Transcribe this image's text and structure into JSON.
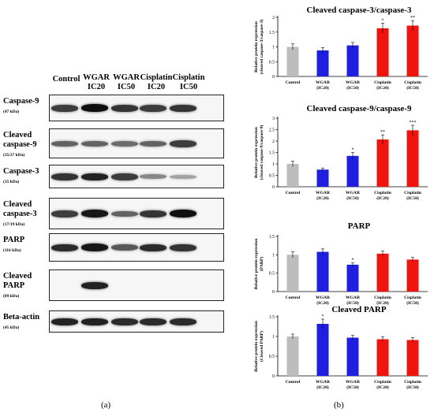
{
  "panel_a": {
    "caption": "(a)",
    "lanes": [
      "Control",
      "WGAR\nIC20",
      "WGAR\nIC50",
      "Cisplatin\nIC20",
      "Cisplatin\nIC50"
    ],
    "blots": [
      {
        "name": "Caspase-9",
        "kda": "(47 kDa)",
        "intensity": [
          0.75,
          1.0,
          0.8,
          0.75,
          0.8
        ]
      },
      {
        "name": "Cleaved\ncaspase-9",
        "kda": "(35/27 kDa)",
        "intensity": [
          0.55,
          0.55,
          0.5,
          0.55,
          0.75
        ]
      },
      {
        "name": "Caspase-3",
        "kda": "(35 kDa)",
        "intensity": [
          0.8,
          0.9,
          0.75,
          0.35,
          0.2
        ]
      },
      {
        "name": "Cleaved\ncaspase-3",
        "kda": "(17/19 kDa)",
        "intensity": [
          0.75,
          0.95,
          0.55,
          0.8,
          1.0
        ]
      },
      {
        "name": "PARP",
        "kda": "(116 kDa)",
        "intensity": [
          0.85,
          0.95,
          0.6,
          0.85,
          0.8
        ]
      },
      {
        "name": "Cleaved\nPARP",
        "kda": "(89 kDa)",
        "intensity": [
          0.0,
          0.9,
          0.0,
          0.0,
          0.0
        ]
      },
      {
        "name": "Beta-actin",
        "kda": "(45 kDa)",
        "intensity": [
          0.9,
          0.9,
          0.85,
          0.85,
          0.85
        ]
      }
    ]
  },
  "panel_b": {
    "caption": "(b)",
    "colors": {
      "control": "#bdbdbd",
      "wgar": "#1f1fe0",
      "cisplatin": "#f0140f"
    }
  },
  "chart_data": [
    {
      "type": "bar",
      "title": "Cleaved caspase-3/caspase-3",
      "ylabel": "Relative protein expression\n(cleaved caspase-3/caspase-3)",
      "categories": [
        "Control",
        "WGAR\n(IC20)",
        "WGAR\n(IC50)",
        "Cisplatin\n(IC20)",
        "Cisplatin\n(IC50)"
      ],
      "values": [
        1.0,
        0.88,
        1.05,
        1.63,
        1.72
      ],
      "errors": [
        0.1,
        0.1,
        0.1,
        0.17,
        0.17
      ],
      "significance": [
        "",
        "",
        "",
        "*",
        "**"
      ],
      "ylim": [
        0,
        2
      ],
      "yticks": [
        0,
        0.5,
        1,
        1.5,
        2
      ]
    },
    {
      "type": "bar",
      "title": "Cleaved caspase-9/caspase-9",
      "ylabel": "Relative protein expression\n(cleaved caspase-9/caspase-9)",
      "categories": [
        "Control",
        "WGAR\n(IC20)",
        "WGAR\n(IC50)",
        "Cisplatin\n(IC20)",
        "Cisplatin\n(IC50)"
      ],
      "values": [
        1.0,
        0.75,
        1.35,
        2.07,
        2.47
      ],
      "errors": [
        0.12,
        0.07,
        0.15,
        0.2,
        0.22
      ],
      "significance": [
        "",
        "",
        "*",
        "**",
        "***"
      ],
      "ylim": [
        0,
        3
      ],
      "yticks": [
        0,
        0.5,
        1,
        1.5,
        2,
        2.5,
        3
      ]
    },
    {
      "type": "bar",
      "title": "PARP",
      "ylabel": "Relative protein expression\n(PARP)",
      "categories": [
        "Control",
        "WGAR\n(IC20)",
        "WGAR\n(IC50)",
        "Cisplatin\n(IC20)",
        "Cisplatin\n(IC50)"
      ],
      "values": [
        1.0,
        1.08,
        0.73,
        1.03,
        0.87
      ],
      "errors": [
        0.08,
        0.08,
        0.05,
        0.07,
        0.06
      ],
      "significance": [
        "",
        "",
        "*",
        "",
        ""
      ],
      "ylim": [
        0,
        1.5
      ],
      "yticks": [
        0,
        0.5,
        1,
        1.5
      ]
    },
    {
      "type": "bar",
      "title": "Cleaved PARP",
      "ylabel": "Relative protein expression\n(Cleaved PARP)",
      "categories": [
        "Control",
        "WGAR\n(IC20)",
        "WGAR\n(IC50)",
        "Cisplatin\n(IC20)",
        "Cisplatin\n(IC50)"
      ],
      "values": [
        1.0,
        1.32,
        0.97,
        0.93,
        0.91
      ],
      "errors": [
        0.06,
        0.12,
        0.06,
        0.06,
        0.06
      ],
      "significance": [
        "",
        "*",
        "",
        "",
        ""
      ],
      "ylim": [
        0,
        1.5
      ],
      "yticks": [
        0,
        0.5,
        1,
        1.5
      ]
    }
  ]
}
